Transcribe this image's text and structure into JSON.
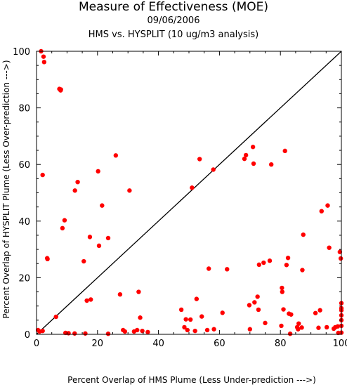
{
  "chart_data": {
    "type": "scatter",
    "title": "Measure of Effectiveness (MOE)",
    "date": "09/06/2006",
    "subtitle": "HMS vs. HYSPLIT  (10 ug/m3 analysis)",
    "xlabel": "Percent Overlap of HMS Plume (Less Under-prediction --->)",
    "ylabel": "Percent Overlap of HYSPLIT Plume (Less Over-prediction --->)",
    "xlim": [
      0,
      100
    ],
    "ylim": [
      0,
      100
    ],
    "xticks": [
      0,
      20,
      40,
      60,
      80,
      100
    ],
    "yticks": [
      0,
      20,
      40,
      60,
      80,
      100
    ],
    "reference_line": [
      [
        0,
        0
      ],
      [
        100,
        100
      ]
    ],
    "colors": {
      "points": "#ff0000",
      "line": "#000000"
    },
    "points": [
      [
        1.5,
        100
      ],
      [
        2.3,
        98.1
      ],
      [
        2.5,
        96.2
      ],
      [
        7.5,
        86.7
      ],
      [
        7.9,
        86.2
      ],
      [
        8.0,
        86.5
      ],
      [
        2.0,
        56.3
      ],
      [
        3.5,
        26.9
      ],
      [
        3.6,
        26.6
      ],
      [
        6.4,
        6.2
      ],
      [
        8.5,
        37.5
      ],
      [
        9.2,
        40.3
      ],
      [
        0.5,
        1.5
      ],
      [
        1.0,
        1.0
      ],
      [
        2.0,
        1.2
      ],
      [
        9.5,
        0.5
      ],
      [
        10.5,
        0.4
      ],
      [
        12.5,
        0.3
      ],
      [
        12.6,
        50.8
      ],
      [
        13.5,
        53.8
      ],
      [
        15.5,
        25.8
      ],
      [
        16.0,
        0.3
      ],
      [
        16.5,
        11.9
      ],
      [
        17.5,
        34.4
      ],
      [
        17.8,
        12.3
      ],
      [
        20.2,
        57.6
      ],
      [
        20.5,
        31.3
      ],
      [
        21.5,
        45.5
      ],
      [
        23.5,
        34.0
      ],
      [
        23.5,
        0.2
      ],
      [
        26.0,
        63.2
      ],
      [
        27.4,
        14.1
      ],
      [
        28.4,
        1.5
      ],
      [
        29.0,
        1.0
      ],
      [
        30.5,
        50.8
      ],
      [
        32.0,
        1.0
      ],
      [
        33.0,
        1.5
      ],
      [
        33.5,
        15.0
      ],
      [
        34.0,
        5.9
      ],
      [
        34.7,
        1.2
      ],
      [
        36.5,
        0.8
      ],
      [
        47.5,
        8.7
      ],
      [
        48.5,
        2.5
      ],
      [
        49.0,
        5.3
      ],
      [
        49.5,
        1.5
      ],
      [
        50.5,
        5.2
      ],
      [
        51.0,
        51.8
      ],
      [
        52.0,
        1.2
      ],
      [
        52.5,
        12.5
      ],
      [
        53.5,
        61.9
      ],
      [
        54.2,
        6.3
      ],
      [
        56.0,
        1.5
      ],
      [
        56.5,
        23.2
      ],
      [
        58.0,
        58.2
      ],
      [
        58.2,
        1.8
      ],
      [
        61.0,
        7.6
      ],
      [
        62.5,
        23.0
      ],
      [
        68.2,
        62.0
      ],
      [
        68.7,
        63.3
      ],
      [
        69.8,
        10.3
      ],
      [
        70.0,
        1.8
      ],
      [
        71.0,
        66.2
      ],
      [
        71.2,
        60.3
      ],
      [
        71.5,
        11.3
      ],
      [
        72.5,
        13.3
      ],
      [
        72.8,
        8.7
      ],
      [
        73.0,
        24.6
      ],
      [
        74.5,
        25.3
      ],
      [
        75.0,
        4.0
      ],
      [
        76.5,
        26.0
      ],
      [
        77.0,
        60.0
      ],
      [
        80.3,
        3.0
      ],
      [
        80.5,
        16.4
      ],
      [
        80.6,
        15.0
      ],
      [
        81.0,
        8.8
      ],
      [
        81.5,
        64.8
      ],
      [
        82.0,
        24.5
      ],
      [
        82.5,
        27.0
      ],
      [
        82.8,
        7.3
      ],
      [
        83.2,
        0.2
      ],
      [
        83.5,
        7.0
      ],
      [
        85.5,
        2.5
      ],
      [
        85.8,
        1.8
      ],
      [
        86.0,
        3.8
      ],
      [
        87.0,
        2.4
      ],
      [
        87.2,
        22.7
      ],
      [
        87.5,
        35.2
      ],
      [
        91.5,
        7.5
      ],
      [
        92.5,
        2.3
      ],
      [
        93.0,
        8.5
      ],
      [
        93.5,
        43.5
      ],
      [
        95.2,
        2.5
      ],
      [
        95.5,
        45.5
      ],
      [
        96.0,
        30.6
      ],
      [
        97.5,
        2.0
      ],
      [
        98.0,
        2.5
      ],
      [
        98.8,
        2.8
      ],
      [
        99.0,
        0.5
      ],
      [
        99.5,
        29.1
      ],
      [
        99.8,
        26.8
      ],
      [
        100,
        11.0
      ],
      [
        100,
        9.2
      ],
      [
        100,
        8.5
      ],
      [
        100,
        6.7
      ],
      [
        100,
        5.0
      ],
      [
        100,
        3.0
      ],
      [
        100,
        0.6
      ]
    ]
  }
}
